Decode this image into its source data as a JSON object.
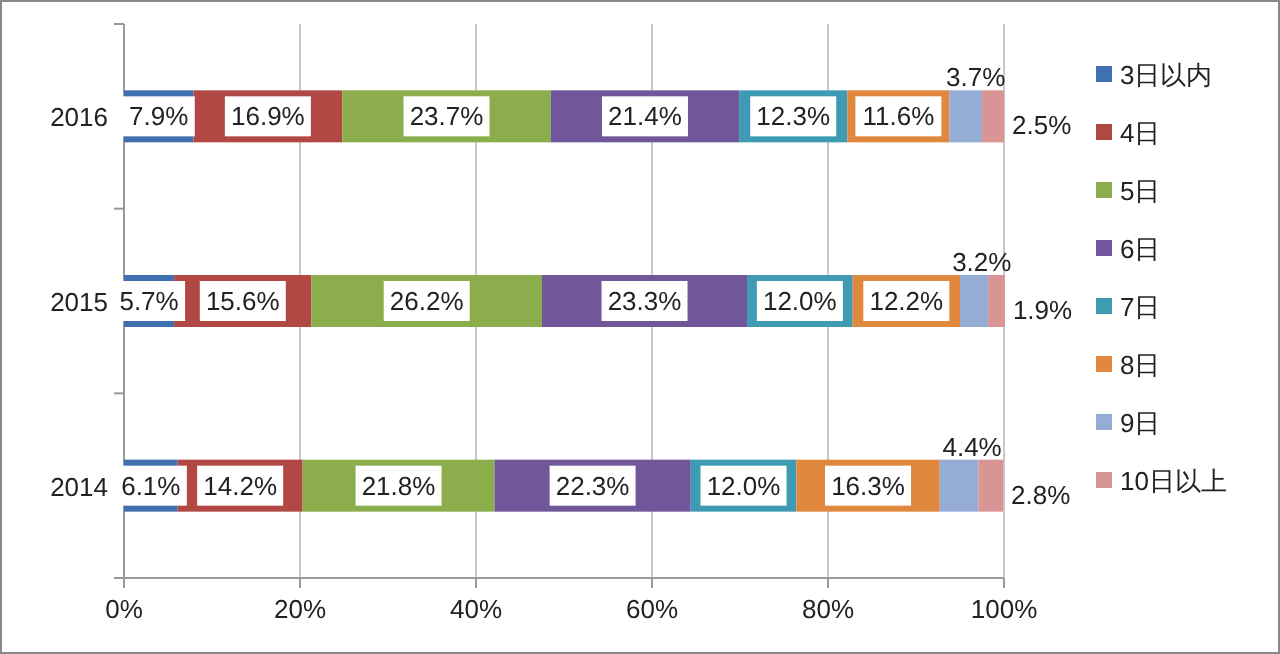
{
  "chart_data": {
    "type": "bar",
    "orientation": "horizontal",
    "stacked": true,
    "categories": [
      "2016",
      "2015",
      "2014"
    ],
    "series": [
      {
        "name": "3日以内",
        "color": "#4170b0",
        "values": [
          7.9,
          5.7,
          6.1
        ],
        "value_labels": [
          "7.9%",
          "5.7%",
          "6.1%"
        ]
      },
      {
        "name": "4日",
        "color": "#b24844",
        "values": [
          16.9,
          15.6,
          14.2
        ],
        "value_labels": [
          "16.9%",
          "15.6%",
          "14.2%"
        ]
      },
      {
        "name": "5日",
        "color": "#8cad4c",
        "values": [
          23.7,
          26.2,
          21.8
        ],
        "value_labels": [
          "23.7%",
          "26.2%",
          "21.8%"
        ]
      },
      {
        "name": "6日",
        "color": "#71579a",
        "values": [
          21.4,
          23.3,
          22.3
        ],
        "value_labels": [
          "21.4%",
          "23.3%",
          "22.3%"
        ]
      },
      {
        "name": "7日",
        "color": "#3f9bb3",
        "values": [
          12.3,
          12.0,
          12.0
        ],
        "value_labels": [
          "12.3%",
          "12.0%",
          "12.0%"
        ]
      },
      {
        "name": "8日",
        "color": "#e0883e",
        "values": [
          11.6,
          12.2,
          16.3
        ],
        "value_labels": [
          "11.6%",
          "12.2%",
          "16.3%"
        ]
      },
      {
        "name": "9日",
        "color": "#95acd5",
        "values": [
          3.7,
          3.2,
          4.4
        ],
        "value_labels": [
          "3.7%",
          "3.2%",
          "4.4%"
        ]
      },
      {
        "name": "10日以上",
        "color": "#d99593",
        "values": [
          2.5,
          1.9,
          2.8
        ],
        "value_labels": [
          "2.5%",
          "1.9%",
          "2.8%"
        ]
      }
    ],
    "xlim": [
      0,
      100
    ],
    "xticks": [
      {
        "value": 0,
        "label": "0%"
      },
      {
        "value": 20,
        "label": "20%"
      },
      {
        "value": 40,
        "label": "40%"
      },
      {
        "value": 60,
        "label": "60%"
      },
      {
        "value": 80,
        "label": "80%"
      },
      {
        "value": 100,
        "label": "100%"
      }
    ],
    "grid": "x",
    "legend": "right"
  }
}
